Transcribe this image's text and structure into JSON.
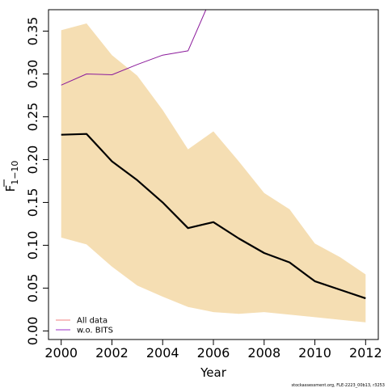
{
  "chart_data": {
    "type": "line",
    "xlabel": "Year",
    "ylabel_main": "F",
    "ylabel_sub": "1−10",
    "xlim": [
      1999.5,
      2012.5
    ],
    "ylim": [
      -0.01,
      0.375
    ],
    "x_ticks": [
      2000,
      2002,
      2004,
      2006,
      2008,
      2010,
      2012
    ],
    "y_ticks": [
      0.0,
      0.05,
      0.1,
      0.15,
      0.2,
      0.25,
      0.3,
      0.35
    ],
    "y_tick_labels": [
      "0.00",
      "0.05",
      "0.10",
      "0.15",
      "0.20",
      "0.25",
      "0.30",
      "0.35"
    ],
    "band": {
      "color": "#f5deb3",
      "x": [
        2000,
        2001,
        2002,
        2003,
        2004,
        2005,
        2006,
        2007,
        2008,
        2009,
        2010,
        2011,
        2012
      ],
      "upper": [
        0.351,
        0.359,
        0.322,
        0.298,
        0.258,
        0.212,
        0.233,
        0.198,
        0.161,
        0.142,
        0.102,
        0.086,
        0.066
      ],
      "lower": [
        0.109,
        0.101,
        0.075,
        0.053,
        0.04,
        0.028,
        0.022,
        0.02,
        0.022,
        0.019,
        0.016,
        0.013,
        0.01
      ]
    },
    "series": [
      {
        "color": "#000000",
        "x": [
          2000,
          2001,
          2002,
          2003,
          2004,
          2005,
          2006,
          2007,
          2008,
          2009,
          2010,
          2011,
          2012
        ],
        "values": [
          0.229,
          0.23,
          0.198,
          0.176,
          0.15,
          0.12,
          0.127,
          0.108,
          0.091,
          0.08,
          0.058,
          0.048,
          0.038
        ]
      },
      {
        "name": "w.o. BITS",
        "color": "#8b1a9b",
        "x": [
          2000,
          2001,
          2002,
          2003,
          2004,
          2005,
          2006
        ],
        "values": [
          0.287,
          0.3,
          0.299,
          0.311,
          0.322,
          0.327,
          0.395
        ]
      }
    ],
    "legend": {
      "position": "bottom-left",
      "entries": [
        {
          "label": "All data",
          "color": "#f08080"
        },
        {
          "label": "w.o. BITS",
          "color": "#9b30c8"
        }
      ]
    },
    "footnote": "stockassessment.org, FLE-2223_00b13, r3253"
  }
}
